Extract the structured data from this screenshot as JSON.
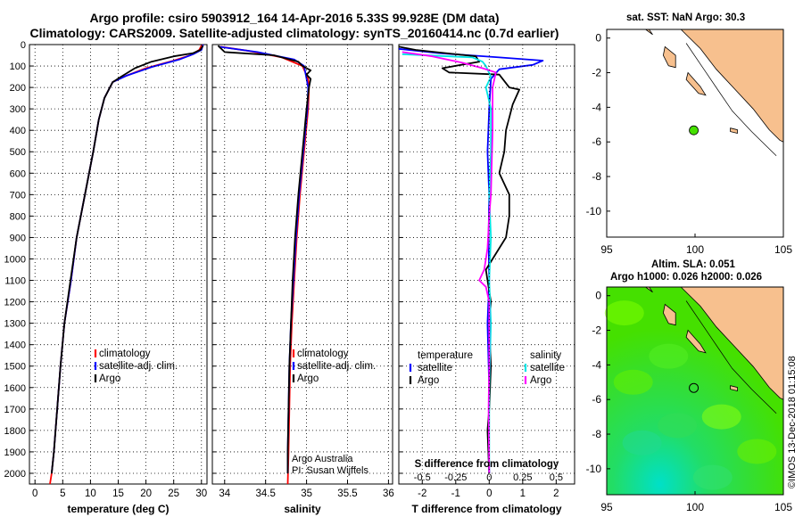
{
  "header": {
    "title_line1": "Argo profile: csiro 5903912_164 14-Apr-2016 5.33S 99.928E (DM data)",
    "title_line2": "Climatology: CARS2009. Satellite-adjusted climatology: synTS_20160414.nc (0.7d earlier)"
  },
  "right_panels": {
    "sst_title": "sat. SST: NaN Argo: 30.3",
    "sla_title_1": "Altim. SLA: 0.051",
    "sla_title_2": "Argo h1000: 0.026 h2000: 0.026",
    "watermark": "©IMOS 13-Dec-2018 01:15:08"
  },
  "colors": {
    "climatology": "#ff0000",
    "satellite": "#0000ff",
    "argo": "#000000",
    "salinity_satellite": "#00e5e5",
    "salinity_argo": "#ff00ff",
    "land": "#f7c08e",
    "sea_green": "#45e000",
    "sea_cyan": "#00e0c8"
  },
  "chart_data": [
    {
      "id": "temperature",
      "type": "line",
      "xlabel": "temperature (deg C)",
      "ylim": [
        2050,
        0
      ],
      "xlim": [
        -1,
        31
      ],
      "x_ticks": [
        0,
        5,
        10,
        15,
        20,
        25,
        30
      ],
      "y_ticks": [
        0,
        100,
        200,
        300,
        400,
        500,
        600,
        700,
        800,
        900,
        1000,
        1100,
        1200,
        1300,
        1400,
        1500,
        1600,
        1700,
        1800,
        1900,
        2000
      ],
      "legend": [
        "climatology",
        "satellite-adj. clim.",
        "Argo"
      ],
      "series": [
        {
          "name": "climatology",
          "color": "#ff0000",
          "points": [
            [
              30.1,
              0
            ],
            [
              29.6,
              25
            ],
            [
              28,
              50
            ],
            [
              25,
              75
            ],
            [
              20,
              110
            ],
            [
              16,
              150
            ],
            [
              14,
              175
            ],
            [
              12.5,
              250
            ],
            [
              11.5,
              350
            ],
            [
              10.5,
              500
            ],
            [
              9,
              700
            ],
            [
              7.5,
              900
            ],
            [
              6.5,
              1100
            ],
            [
              5.3,
              1300
            ],
            [
              4.6,
              1500
            ],
            [
              4,
              1700
            ],
            [
              3.4,
              1900
            ],
            [
              3,
              2000
            ],
            [
              2.7,
              2050
            ]
          ]
        },
        {
          "name": "satellite-adj. clim.",
          "color": "#0000ff",
          "points": [
            [
              30.3,
              0
            ],
            [
              30,
              25
            ],
            [
              28.5,
              45
            ],
            [
              26,
              70
            ],
            [
              21,
              105
            ],
            [
              16.5,
              145
            ],
            [
              14,
              175
            ],
            [
              12.5,
              250
            ],
            [
              11.5,
              350
            ],
            [
              10.5,
              500
            ],
            [
              9,
              700
            ],
            [
              7.5,
              900
            ],
            [
              6.5,
              1100
            ],
            [
              5.3,
              1300
            ],
            [
              4.6,
              1500
            ],
            [
              4,
              1700
            ],
            [
              3.4,
              1900
            ],
            [
              3,
              2000
            ]
          ]
        },
        {
          "name": "Argo",
          "color": "#000000",
          "points": [
            [
              30.3,
              5
            ],
            [
              29.8,
              25
            ],
            [
              28.5,
              40
            ],
            [
              25,
              55
            ],
            [
              21,
              80
            ],
            [
              18,
              110
            ],
            [
              15.5,
              150
            ],
            [
              14,
              175
            ],
            [
              12.5,
              250
            ],
            [
              11.5,
              350
            ],
            [
              10.5,
              500
            ],
            [
              9,
              700
            ],
            [
              7.5,
              900
            ],
            [
              6.4,
              1100
            ],
            [
              5.3,
              1300
            ],
            [
              4.6,
              1500
            ],
            [
              4,
              1700
            ],
            [
              3.4,
              1900
            ],
            [
              3,
              2000
            ]
          ]
        }
      ]
    },
    {
      "id": "salinity",
      "type": "line",
      "xlabel": "salinity",
      "ylim": [
        2050,
        0
      ],
      "xlim": [
        33.85,
        36.05
      ],
      "x_ticks": [
        34,
        34.5,
        35,
        35.5,
        36
      ],
      "legend": [
        "climatology",
        "satellite-adj. clim.",
        "Argo"
      ],
      "annotation": [
        "Argo Australia",
        "PI: Susan Wijffels"
      ],
      "series": [
        {
          "name": "climatology",
          "color": "#ff0000",
          "points": [
            [
              33.95,
              10
            ],
            [
              34.3,
              30
            ],
            [
              34.7,
              60
            ],
            [
              34.95,
              100
            ],
            [
              35.02,
              160
            ],
            [
              35.03,
              200
            ],
            [
              35.02,
              300
            ],
            [
              34.97,
              500
            ],
            [
              34.92,
              700
            ],
            [
              34.88,
              900
            ],
            [
              34.85,
              1100
            ],
            [
              34.82,
              1300
            ],
            [
              34.8,
              1500
            ],
            [
              34.79,
              1700
            ],
            [
              34.78,
              1900
            ],
            [
              34.77,
              2050
            ]
          ]
        },
        {
          "name": "satellite-adj. clim.",
          "color": "#0000ff",
          "points": [
            [
              33.93,
              10
            ],
            [
              34.4,
              35
            ],
            [
              34.85,
              70
            ],
            [
              34.97,
              100
            ],
            [
              35.0,
              160
            ],
            [
              35.02,
              200
            ],
            [
              35.01,
              300
            ],
            [
              34.96,
              500
            ],
            [
              34.91,
              700
            ],
            [
              34.87,
              900
            ],
            [
              34.84,
              1100
            ],
            [
              34.81,
              1300
            ],
            [
              34.79,
              1500
            ],
            [
              34.78,
              1700
            ],
            [
              34.77,
              1900
            ],
            [
              34.77,
              2000
            ]
          ]
        },
        {
          "name": "Argo",
          "color": "#000000",
          "points": [
            [
              33.92,
              5
            ],
            [
              34.0,
              35
            ],
            [
              34.6,
              50
            ],
            [
              34.9,
              80
            ],
            [
              34.95,
              100
            ],
            [
              35.05,
              120
            ],
            [
              35.0,
              140
            ],
            [
              35.05,
              160
            ],
            [
              35.03,
              200
            ],
            [
              35.0,
              300
            ],
            [
              34.95,
              500
            ],
            [
              34.9,
              700
            ],
            [
              34.86,
              900
            ],
            [
              34.83,
              1100
            ],
            [
              34.81,
              1300
            ],
            [
              34.79,
              1500
            ],
            [
              34.78,
              1700
            ],
            [
              34.77,
              1900
            ],
            [
              34.77,
              2000
            ]
          ]
        }
      ]
    },
    {
      "id": "difference",
      "type": "line",
      "xlabel": "T difference from climatology",
      "xlabel2": "S difference from climatology",
      "ylim": [
        2050,
        0
      ],
      "xlim": [
        -2.7,
        2.55
      ],
      "x_ticks": [
        -2,
        -1,
        0,
        1,
        2
      ],
      "x2_ticks": [
        "-0.5",
        "-0.25",
        "0",
        "0.25",
        "0.5"
      ],
      "legend_left": {
        "header": "temperature",
        "items": [
          "satellite",
          "Argo"
        ]
      },
      "legend_right": {
        "header": "salinity",
        "items": [
          "satellite",
          "Argo"
        ]
      },
      "series": [
        {
          "name": "T satellite",
          "color": "#0000ff",
          "points": [
            [
              -2.7,
              20
            ],
            [
              -1.5,
              40
            ],
            [
              0.3,
              60
            ],
            [
              1.6,
              75
            ],
            [
              1.3,
              95
            ],
            [
              0.3,
              115
            ],
            [
              0.05,
              160
            ],
            [
              0.0,
              300
            ],
            [
              -0.05,
              500
            ],
            [
              0.0,
              700
            ],
            [
              -0.02,
              900
            ],
            [
              0.0,
              1100
            ],
            [
              -0.05,
              1300
            ],
            [
              0.0,
              1600
            ],
            [
              -0.02,
              1900
            ],
            [
              0.0,
              2000
            ]
          ]
        },
        {
          "name": "T Argo",
          "color": "#000000",
          "points": [
            [
              -2.7,
              10
            ],
            [
              -2.2,
              25
            ],
            [
              -0.4,
              55
            ],
            [
              -0.3,
              80
            ],
            [
              -1.4,
              110
            ],
            [
              -1.2,
              130
            ],
            [
              0.3,
              140
            ],
            [
              0.6,
              200
            ],
            [
              0.9,
              210
            ],
            [
              0.7,
              280
            ],
            [
              0.5,
              400
            ],
            [
              0.45,
              500
            ],
            [
              0.3,
              600
            ],
            [
              0.6,
              700
            ],
            [
              0.6,
              800
            ],
            [
              0.5,
              900
            ],
            [
              0.1,
              1000
            ],
            [
              -0.1,
              1050
            ],
            [
              -0.05,
              1100
            ],
            [
              0.05,
              1200
            ],
            [
              0.0,
              1300
            ],
            [
              0.05,
              1500
            ],
            [
              0.0,
              1700
            ],
            [
              -0.05,
              1800
            ],
            [
              0.0,
              2000
            ]
          ]
        },
        {
          "name": "S satellite",
          "color": "#00e5e5",
          "points": [
            [
              -2.6,
              45
            ],
            [
              -0.5,
              60
            ],
            [
              -0.2,
              80
            ],
            [
              -0.1,
              100
            ],
            [
              0.05,
              150
            ],
            [
              -0.1,
              200
            ],
            [
              0.05,
              300
            ],
            [
              0.05,
              500
            ],
            [
              0.0,
              700
            ],
            [
              0.05,
              900
            ],
            [
              0.0,
              1100
            ],
            [
              0.05,
              1300
            ],
            [
              0.0,
              1600
            ],
            [
              0.0,
              2000
            ]
          ]
        },
        {
          "name": "S Argo",
          "color": "#ff00ff",
          "points": [
            [
              -2.6,
              35
            ],
            [
              -1.7,
              55
            ],
            [
              -0.8,
              85
            ],
            [
              -0.2,
              110
            ],
            [
              0.2,
              130
            ],
            [
              0.1,
              200
            ],
            [
              0.1,
              400
            ],
            [
              0.05,
              700
            ],
            [
              0.0,
              800
            ],
            [
              -0.05,
              950
            ],
            [
              -0.1,
              1000
            ],
            [
              -0.15,
              1050
            ],
            [
              -0.3,
              1100
            ],
            [
              -0.1,
              1130
            ],
            [
              0.0,
              1200
            ],
            [
              0.0,
              1500
            ],
            [
              -0.02,
              1700
            ],
            [
              0.0,
              2000
            ]
          ]
        }
      ]
    },
    {
      "id": "sst_map",
      "type": "scatter",
      "xlim": [
        95,
        105
      ],
      "ylim": [
        -11.5,
        0.5
      ],
      "x_ticks": [
        95,
        100,
        105
      ],
      "y_ticks": [
        0,
        -2,
        -4,
        -6,
        -8,
        -10
      ],
      "point": {
        "lon": 99.928,
        "lat": -5.33,
        "color": "#45e000"
      }
    },
    {
      "id": "sla_map",
      "type": "heatmap",
      "xlim": [
        95,
        105
      ],
      "ylim": [
        -11.5,
        0.5
      ],
      "x_ticks": [
        95,
        100,
        105
      ],
      "y_ticks": [
        0,
        -2,
        -4,
        -6,
        -8,
        -10
      ],
      "point": {
        "lon": 99.928,
        "lat": -5.33
      }
    }
  ]
}
